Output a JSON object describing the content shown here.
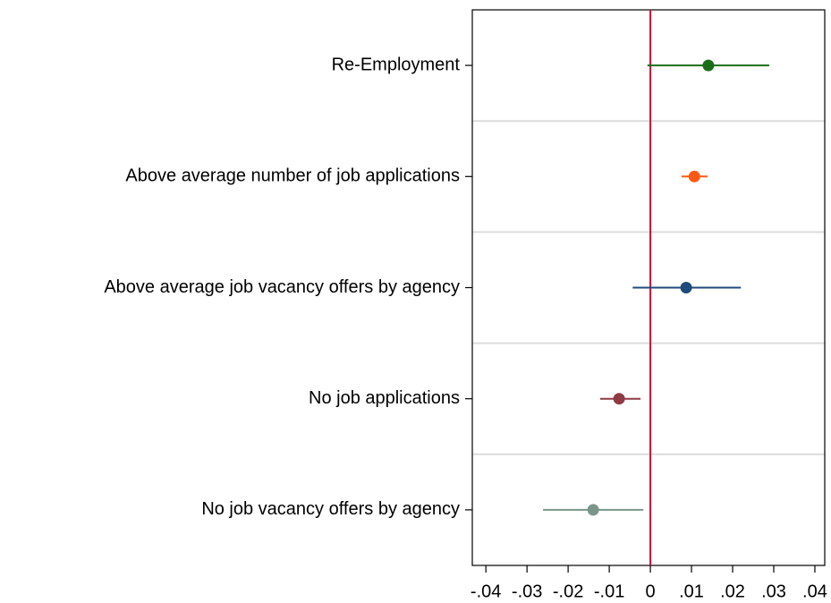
{
  "chart_data": {
    "type": "coefplot",
    "categories": [
      "Re-Employment",
      "Above average number of job applications",
      "Above average job vacancy offers by agency",
      "No job applications",
      "No job vacancy offers by agency"
    ],
    "values": [
      0.0141,
      0.0107,
      0.0087,
      -0.0076,
      -0.0139
    ],
    "ci_low": [
      -0.0007,
      0.0076,
      -0.0043,
      -0.0122,
      -0.0261
    ],
    "ci_high": [
      0.0289,
      0.0139,
      0.022,
      -0.0024,
      -0.0017
    ],
    "colors": [
      "#1a6e1a",
      "#ff5a14",
      "#1f4a7c",
      "#8f3a44",
      "#7a968a"
    ],
    "xlim": [
      -0.0433,
      0.0424
    ],
    "xticks": [
      {
        "value": -0.04,
        "label": "-.04"
      },
      {
        "value": -0.03,
        "label": "-.03"
      },
      {
        "value": -0.02,
        "label": "-.02"
      },
      {
        "value": -0.01,
        "label": "-.01"
      },
      0,
      {
        "value": 0.01,
        "label": ".01"
      },
      {
        "value": 0.02,
        "label": ".02"
      },
      {
        "value": 0.03,
        "label": ".03"
      },
      {
        "value": 0.04,
        "label": ".04"
      }
    ],
    "xline": 0,
    "xline_color": "#c8103a",
    "grid": true
  }
}
